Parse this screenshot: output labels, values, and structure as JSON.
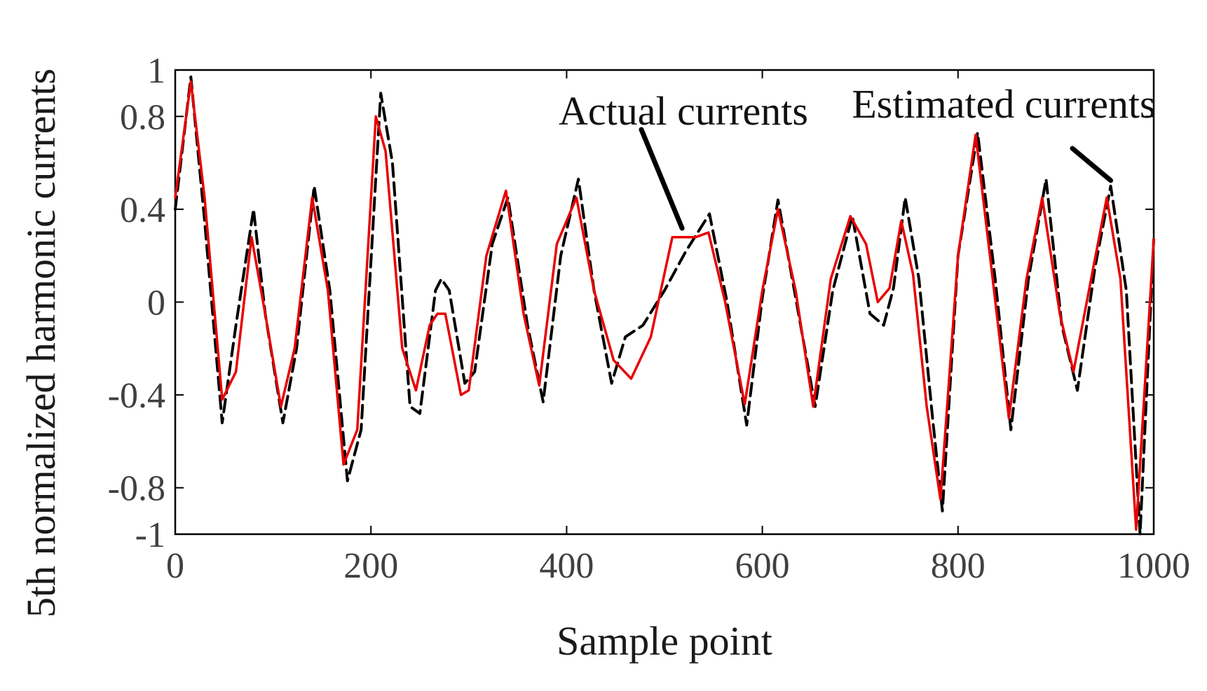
{
  "chart_data": {
    "type": "line",
    "title": "",
    "xlabel": "Sample point",
    "ylabel": "5th normalized harmonic currents",
    "xlim": [
      0,
      1000
    ],
    "ylim": [
      -1,
      1
    ],
    "x_ticks": [
      0,
      200,
      400,
      600,
      800,
      1000
    ],
    "x_tick_labels": [
      "0",
      "200",
      "400",
      "600",
      "800",
      "1000"
    ],
    "y_ticks": [
      1,
      0.8,
      0.4,
      0,
      -0.4,
      -0.8,
      -1
    ],
    "y_tick_labels": [
      "1",
      "0.8",
      "0.4",
      "0",
      "-0.4",
      "-0.8",
      "-1"
    ],
    "grid": false,
    "legend": "none",
    "series": [
      {
        "name": "Actual currents",
        "color": "#e80000",
        "style": "solid",
        "x": [
          0,
          16,
          30,
          48,
          62,
          78,
          92,
          108,
          122,
          140,
          156,
          172,
          186,
          205,
          215,
          232,
          246,
          260,
          268,
          276,
          292,
          300,
          318,
          338,
          356,
          372,
          390,
          410,
          428,
          448,
          466,
          486,
          508,
          532,
          545,
          562,
          582,
          600,
          616,
          634,
          652,
          670,
          690,
          706,
          718,
          730,
          742,
          754,
          768,
          782,
          800,
          818,
          834,
          852,
          870,
          886,
          904,
          918,
          936,
          952,
          966,
          982,
          1000
        ],
        "values": [
          0.45,
          0.95,
          0.45,
          -0.42,
          -0.3,
          0.28,
          -0.05,
          -0.45,
          -0.2,
          0.45,
          0.05,
          -0.7,
          -0.55,
          0.8,
          0.65,
          -0.2,
          -0.38,
          -0.1,
          -0.05,
          -0.05,
          -0.4,
          -0.38,
          0.2,
          0.48,
          -0.05,
          -0.36,
          0.25,
          0.45,
          0.05,
          -0.25,
          -0.33,
          -0.15,
          0.28,
          0.28,
          0.3,
          0.0,
          -0.44,
          0.05,
          0.4,
          0.05,
          -0.45,
          0.1,
          0.37,
          0.25,
          0.0,
          0.06,
          0.35,
          0.12,
          -0.45,
          -0.85,
          0.2,
          0.72,
          0.15,
          -0.5,
          0.1,
          0.45,
          -0.05,
          -0.3,
          0.1,
          0.45,
          0.1,
          -0.98,
          0.27
        ]
      },
      {
        "name": "Estimated currents",
        "color": "#000000",
        "style": "dashed",
        "x": [
          0,
          16,
          30,
          48,
          62,
          80,
          92,
          110,
          124,
          142,
          158,
          176,
          190,
          210,
          222,
          240,
          250,
          266,
          272,
          280,
          296,
          306,
          324,
          340,
          360,
          376,
          394,
          412,
          428,
          446,
          460,
          478,
          500,
          522,
          546,
          564,
          584,
          600,
          616,
          634,
          654,
          672,
          692,
          710,
          724,
          734,
          746,
          760,
          774,
          784,
          800,
          820,
          838,
          854,
          872,
          890,
          906,
          922,
          940,
          956,
          972,
          986,
          1000
        ],
        "values": [
          0.4,
          0.97,
          0.35,
          -0.52,
          -0.1,
          0.4,
          -0.05,
          -0.52,
          -0.2,
          0.5,
          0.05,
          -0.77,
          -0.55,
          0.9,
          0.6,
          -0.45,
          -0.48,
          0.05,
          0.1,
          0.05,
          -0.35,
          -0.3,
          0.25,
          0.45,
          -0.1,
          -0.43,
          0.2,
          0.53,
          0.05,
          -0.35,
          -0.15,
          -0.1,
          0.05,
          0.22,
          0.38,
          0.0,
          -0.53,
          0.02,
          0.44,
          0.02,
          -0.45,
          0.05,
          0.37,
          -0.05,
          -0.1,
          0.06,
          0.45,
          0.1,
          -0.5,
          -0.9,
          0.2,
          0.73,
          0.1,
          -0.55,
          0.1,
          0.53,
          -0.1,
          -0.38,
          0.15,
          0.5,
          0.05,
          -1.0,
          0.27
        ]
      }
    ],
    "annotations": [
      {
        "text": "Actual currents",
        "anchor_x": 518,
        "anchor_y": 0.3,
        "series": "Actual currents"
      },
      {
        "text": "Estimated currents",
        "anchor_x": 956,
        "anchor_y": 0.5,
        "series": "Estimated currents"
      }
    ]
  }
}
